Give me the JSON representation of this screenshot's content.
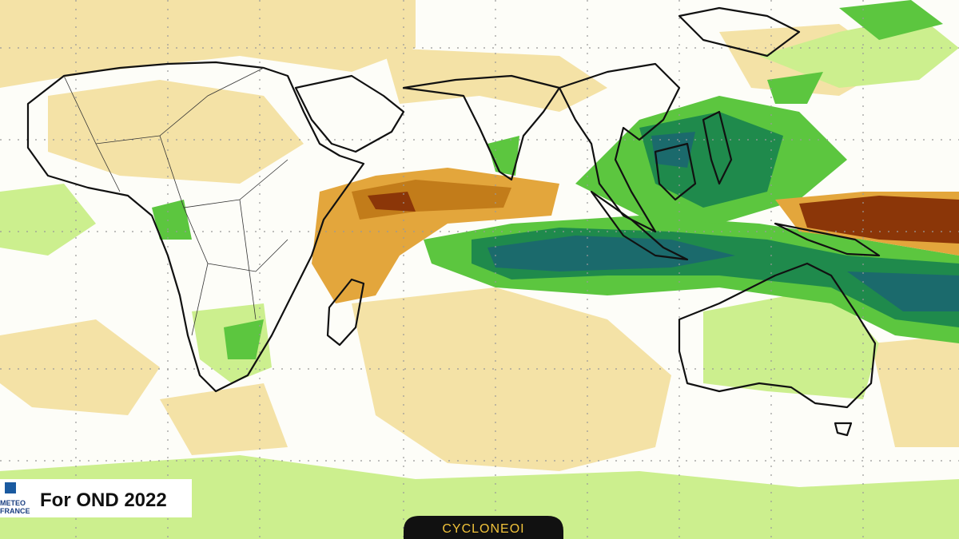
{
  "caption": "For OND 2022",
  "logo": {
    "line1": "METEO",
    "line2": "FRANCE"
  },
  "badge": "CYCLONEOI"
}
